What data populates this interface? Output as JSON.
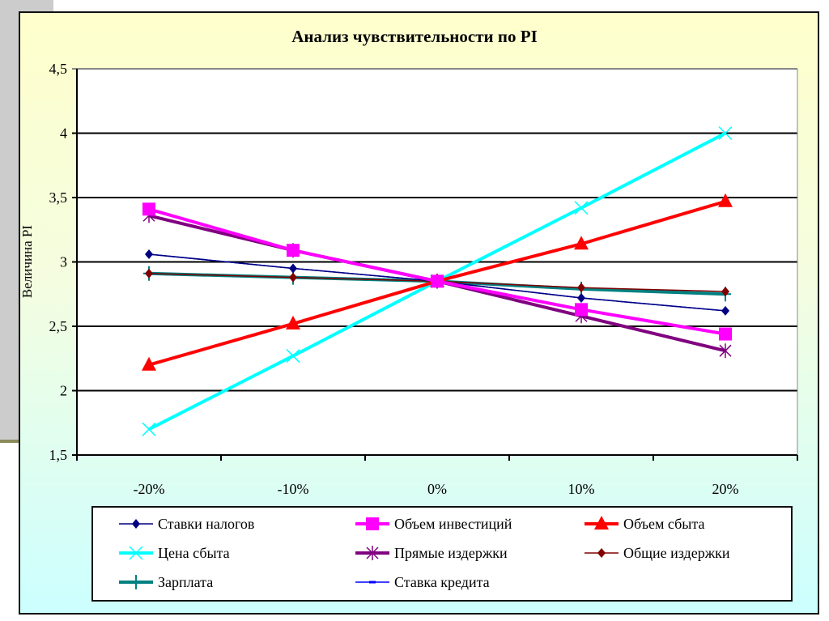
{
  "chart_data": {
    "type": "line",
    "title": "Анализ чувствительности по PI",
    "xlabel": "",
    "ylabel": "Величина PI",
    "ylim": [
      1.5,
      4.5
    ],
    "yticks": [
      "1,5",
      "2",
      "2,5",
      "3",
      "3,5",
      "4",
      "4,5"
    ],
    "ytick_values": [
      1.5,
      2,
      2.5,
      3,
      3.5,
      4,
      4.5
    ],
    "categories": [
      "-20%",
      "-10%",
      "0%",
      "10%",
      "20%"
    ],
    "grid": "horizontal",
    "legend_position": "bottom",
    "series": [
      {
        "name": "Ставки налогов",
        "color": "#000080",
        "marker": "diamond",
        "width": 1.5,
        "values": [
          3.06,
          2.95,
          2.85,
          2.72,
          2.62
        ]
      },
      {
        "name": "Объем инвестиций",
        "color": "#ff00ff",
        "marker": "square",
        "width": 4,
        "values": [
          3.41,
          3.09,
          2.85,
          2.63,
          2.44
        ]
      },
      {
        "name": "Объем сбыта",
        "color": "#ff0000",
        "marker": "triangle",
        "width": 4,
        "values": [
          2.2,
          2.52,
          2.85,
          3.14,
          3.47
        ]
      },
      {
        "name": "Цена сбыта",
        "color": "#00ffff",
        "marker": "x",
        "width": 4,
        "values": [
          1.7,
          2.27,
          2.85,
          3.42,
          4.0
        ]
      },
      {
        "name": "Прямые издержки",
        "color": "#800080",
        "marker": "star",
        "width": 4,
        "values": [
          3.36,
          3.09,
          2.85,
          2.58,
          2.31
        ]
      },
      {
        "name": "Общие издержки",
        "color": "#800000",
        "marker": "diamond",
        "width": 1.5,
        "values": [
          2.91,
          2.88,
          2.85,
          2.8,
          2.77
        ]
      },
      {
        "name": "Зарплата",
        "color": "#008080",
        "marker": "plus",
        "width": 4,
        "values": [
          2.91,
          2.88,
          2.85,
          2.79,
          2.75
        ]
      },
      {
        "name": "Ставка кредита",
        "color": "#0000ff",
        "marker": "dash",
        "width": 1.5,
        "values": [
          3.06,
          2.95,
          2.85,
          2.72,
          2.62
        ]
      }
    ]
  }
}
